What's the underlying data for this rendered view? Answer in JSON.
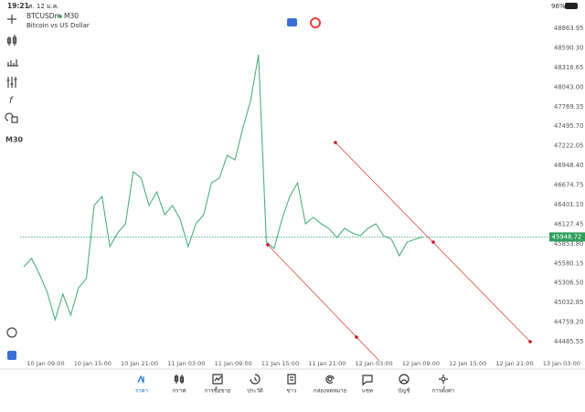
{
  "status_bar": {
    "time": "19:21",
    "date": "ศ. 12 ม.ค.",
    "battery": "96%"
  },
  "symbol": {
    "name": "BTCUSDm",
    "timeframe": "M30",
    "description": "Bitcoin vs US Dollar"
  },
  "chart": {
    "type": "line",
    "color": "#4caf7d",
    "values": [
      45532.5,
      45647.4,
      45430.5,
      45175.2,
      44792.3,
      45149.7,
      44856.1,
      45239.0,
      45366.7,
      46387.8,
      46515.4,
      45813.3,
      46004.8,
      46132.4,
      46860.0,
      46770.6,
      46387.8,
      46579.2,
      46260.0,
      46387.8,
      46196.2,
      45813.3,
      46132.4,
      46260.0,
      46706.8,
      46770.6,
      47089.7,
      47025.9,
      47472.6,
      47855.6,
      48493.8,
      45877.2,
      45787.8,
      46196.2,
      46515.4,
      46706.8,
      46132.4,
      46221.8,
      46132.4,
      46068.6,
      45941.0,
      46068.6,
      46004.8,
      45966.5,
      46068.6,
      46132.4,
      45966.5,
      45915.5,
      45685.8,
      45877.2,
      45915.5,
      45948.72
    ],
    "ylim": [
      44485.55,
      48863.95
    ],
    "yticks": [
      {
        "value": 48863.95,
        "label": "48863.95"
      },
      {
        "value": 48590.3,
        "label": "48590.30"
      },
      {
        "value": 48316.65,
        "label": "48316.65"
      },
      {
        "value": 48043,
        "label": "48043.00"
      },
      {
        "value": 47769.35,
        "label": "47769.35"
      },
      {
        "value": 47495.7,
        "label": "47495.70"
      },
      {
        "value": 47222.05,
        "label": "47222.05"
      },
      {
        "value": 46948.4,
        "label": "46948.40"
      },
      {
        "value": 46674.75,
        "label": "46674.75"
      },
      {
        "value": 46401.1,
        "label": "46401.10"
      },
      {
        "value": 46127.45,
        "label": "46127.45"
      },
      {
        "value": 45853.8,
        "label": "45853.80"
      },
      {
        "value": 45580.15,
        "label": "45580.15"
      },
      {
        "value": 45306.5,
        "label": "45306.50"
      },
      {
        "value": 45032.85,
        "label": "45032.85"
      },
      {
        "value": 44759.2,
        "label": "44759.20"
      },
      {
        "value": 44485.55,
        "label": "44485.55"
      }
    ],
    "x_labels": [
      "10 Jan 09:00",
      "10 Jan 15:00",
      "10 Jan 21:00",
      "11 Jan 03:00",
      "11 Jan 09:00",
      "11 Jan 15:00",
      "11 Jan 21:00",
      "12 Jan 03:00",
      "12 Jan 09:00",
      "12 Jan 15:00",
      "12 Jan 21:00",
      "13 Jan 03:00"
    ],
    "last_price": 45948.72
  },
  "nav": [
    {
      "label": "ราคา",
      "active": true
    },
    {
      "label": "กราฟ",
      "active": false
    },
    {
      "label": "การซื้อขาย",
      "active": false
    },
    {
      "label": "ประวัติ",
      "active": false
    },
    {
      "label": "ข่าว",
      "active": false
    },
    {
      "label": "กล่องจดหมาย",
      "active": false
    },
    {
      "label": "แชท",
      "active": false
    },
    {
      "label": "บัญชี",
      "active": false
    },
    {
      "label": "การตั้งค่า",
      "active": false
    }
  ]
}
